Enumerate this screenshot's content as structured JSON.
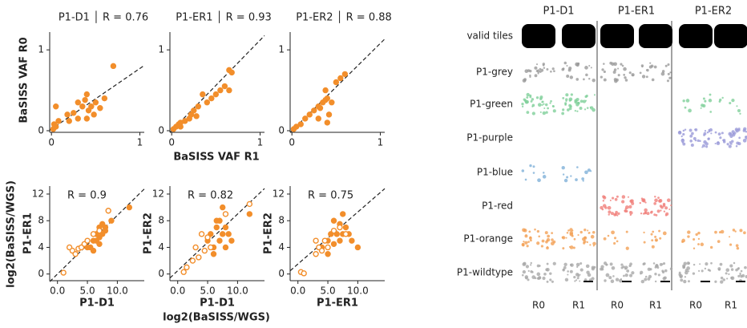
{
  "chart_data": [
    {
      "type": "scatter",
      "title": "P1-D1 │ R = 0.76",
      "ylabel": "BaSISS VAF R0",
      "xlim": [
        -0.02,
        1.05
      ],
      "ylim": [
        -0.02,
        1.22
      ],
      "xticks": [
        0,
        1
      ],
      "yticks": [
        0,
        1
      ],
      "fit": {
        "intercept": 0.02,
        "slope": 0.75
      },
      "series": [
        {
          "color": "#f28e2b",
          "marker": "filled",
          "x": [
            0.02,
            0.03,
            0.05,
            0.08,
            0.05,
            0.2,
            0.18,
            0.25,
            0.3,
            0.35,
            0.38,
            0.4,
            0.42,
            0.45,
            0.5,
            0.48,
            0.55,
            0.6,
            0.7,
            0.3,
            0.4
          ],
          "values": [
            0.02,
            0.08,
            0.05,
            0.12,
            0.3,
            0.12,
            0.2,
            0.22,
            0.35,
            0.3,
            0.38,
            0.45,
            0.25,
            0.3,
            0.35,
            0.2,
            0.28,
            0.4,
            0.8,
            0.15,
            0.15
          ]
        }
      ]
    },
    {
      "type": "scatter",
      "title": "P1-ER1 │ R = 0.93",
      "xlabel": "BaSISS VAF R1",
      "xlim": [
        -0.02,
        1.05
      ],
      "ylim": [
        -0.02,
        1.22
      ],
      "xticks": [
        0,
        1
      ],
      "yticks": [
        0,
        1
      ],
      "fit": {
        "intercept": 0,
        "slope": 1.12
      },
      "series": [
        {
          "color": "#f28e2b",
          "marker": "filled",
          "x": [
            0.02,
            0.05,
            0.08,
            0.1,
            0.15,
            0.2,
            0.22,
            0.25,
            0.3,
            0.35,
            0.28,
            0.4,
            0.45,
            0.5,
            0.55,
            0.6,
            0.65,
            0.68,
            0.65,
            0.1
          ],
          "values": [
            0.02,
            0.05,
            0.08,
            0.1,
            0.12,
            0.15,
            0.2,
            0.25,
            0.3,
            0.45,
            0.18,
            0.35,
            0.4,
            0.45,
            0.5,
            0.55,
            0.75,
            0.72,
            0.5,
            0.05
          ]
        }
      ]
    },
    {
      "type": "scatter",
      "title": "P1-ER2 │ R = 0.88",
      "xlim": [
        -0.02,
        1.05
      ],
      "ylim": [
        -0.02,
        1.22
      ],
      "xticks": [
        0,
        1
      ],
      "yticks": [
        0,
        1
      ],
      "fit": {
        "intercept": 0,
        "slope": 1.08
      },
      "series": [
        {
          "color": "#f28e2b",
          "marker": "filled",
          "x": [
            0.02,
            0.05,
            0.1,
            0.15,
            0.2,
            0.25,
            0.3,
            0.35,
            0.38,
            0.4,
            0.42,
            0.3,
            0.45,
            0.5,
            0.55,
            0.6,
            0.38,
            0.32,
            0.4
          ],
          "values": [
            0.02,
            0.05,
            0.08,
            0.15,
            0.2,
            0.25,
            0.3,
            0.35,
            0.38,
            0.4,
            0.2,
            0.15,
            0.35,
            0.6,
            0.65,
            0.7,
            0.5,
            0.28,
            0.1
          ]
        }
      ]
    },
    {
      "type": "scatter",
      "annotation": "R = 0.9",
      "ylabel": "P1-ER1",
      "xlabel": "P1-D1",
      "xlim": [
        -1.3,
        14.5
      ],
      "ylim": [
        -1,
        13.2
      ],
      "xticks": [
        {
          "value": 0,
          "label": "0.0"
        },
        {
          "value": 5,
          "label": "5.0"
        },
        {
          "value": 10,
          "label": "10.0"
        }
      ],
      "yticks": [
        0,
        4,
        8,
        12
      ],
      "fit": {
        "intercept": 0,
        "slope": 0.88
      },
      "series": [
        {
          "color": "#f28e2b",
          "marker": "filled",
          "x": [
            5,
            6,
            6.5,
            7,
            7.5,
            7,
            8,
            8,
            6,
            5.5,
            7,
            9,
            12,
            6.5,
            7.5
          ],
          "values": [
            4,
            5,
            6,
            5.5,
            6,
            7,
            6.5,
            7,
            3.5,
            4,
            4.5,
            8,
            10,
            5,
            7.5
          ]
        },
        {
          "color": "#f28e2b",
          "marker": "open",
          "x": [
            1,
            2,
            2.5,
            3,
            3.5,
            4,
            4.5,
            5,
            6,
            7,
            8.5
          ],
          "values": [
            0.2,
            4,
            3.5,
            3,
            3.8,
            4,
            4.5,
            5,
            6,
            6.5,
            9.5
          ]
        }
      ]
    },
    {
      "type": "scatter",
      "annotation": "R = 0.82",
      "ylabel": "P1-ER2",
      "xlabel": "P1-D1",
      "xlim": [
        -1.3,
        14.5
      ],
      "ylim": [
        -1,
        13.2
      ],
      "xticks": [
        {
          "value": 0,
          "label": "0.0"
        },
        {
          "value": 5,
          "label": "5.0"
        },
        {
          "value": 10,
          "label": "10.0"
        }
      ],
      "yticks": [
        0,
        4,
        8,
        12
      ],
      "fit": {
        "intercept": 0.5,
        "slope": 0.85
      },
      "series": [
        {
          "color": "#f28e2b",
          "marker": "filled",
          "x": [
            5,
            5.5,
            6,
            6.5,
            7,
            7,
            7.5,
            8,
            8,
            8.5,
            6,
            9,
            12,
            7.5,
            6.5
          ],
          "values": [
            5,
            6,
            4,
            7,
            5,
            8,
            6,
            7,
            4,
            6,
            3,
            5,
            9,
            10,
            8
          ]
        },
        {
          "color": "#f28e2b",
          "marker": "open",
          "x": [
            1,
            1.5,
            2.5,
            3,
            3.5,
            4,
            4.5,
            5,
            5.5,
            8,
            12
          ],
          "values": [
            0.3,
            1,
            2,
            4,
            2.5,
            6,
            3.5,
            5.5,
            4,
            9,
            10.5
          ]
        }
      ]
    },
    {
      "type": "scatter",
      "annotation": "R = 0.75",
      "ylabel": "P1-ER2",
      "xlabel": "P1-ER1",
      "xlim": [
        -1.3,
        14.5
      ],
      "ylim": [
        -1,
        13.2
      ],
      "xticks": [
        {
          "value": 0,
          "label": "0.0"
        },
        {
          "value": 5,
          "label": "5.0"
        },
        {
          "value": 10,
          "label": "10.0"
        }
      ],
      "yticks": [
        0,
        4,
        8,
        12
      ],
      "fit": {
        "intercept": 1.5,
        "slope": 0.78
      },
      "series": [
        {
          "color": "#f28e2b",
          "marker": "filled",
          "x": [
            4,
            5,
            5.5,
            6,
            6.5,
            7,
            7,
            7.5,
            8,
            8.5,
            6,
            9,
            10,
            7.5,
            5
          ],
          "values": [
            4,
            5,
            6,
            4.5,
            6,
            5,
            7.5,
            6,
            7,
            6,
            8,
            5,
            4,
            9,
            3
          ]
        },
        {
          "color": "#f28e2b",
          "marker": "open",
          "x": [
            0.5,
            1,
            3,
            3.5,
            4,
            4.5,
            5,
            6,
            7,
            8,
            3
          ],
          "values": [
            0.3,
            0.1,
            3,
            4,
            3.5,
            5,
            4,
            6.5,
            7,
            6,
            5
          ]
        }
      ]
    }
  ],
  "shared_labels": {
    "y": "log2(BaSISS/WGS)",
    "x": "log2(BaSISS/WGS)"
  },
  "tiles": {
    "columns": [
      "P1-D1",
      "P1-ER1",
      "P1-ER2"
    ],
    "rows": [
      "valid tiles",
      "P1-grey",
      "P1-green",
      "P1-purple",
      "P1-blue",
      "P1-red",
      "P1-orange",
      "P1-wildtype"
    ],
    "row_colors": [
      "#000000",
      "#9a9a9a",
      "#7fcf9a",
      "#9a9ad8",
      "#7fb0d8",
      "#f0807a",
      "#f2a055",
      "#a8a8a8"
    ],
    "replicates": [
      "R0",
      "R1",
      "R0",
      "R1",
      "R0",
      "R1"
    ]
  }
}
